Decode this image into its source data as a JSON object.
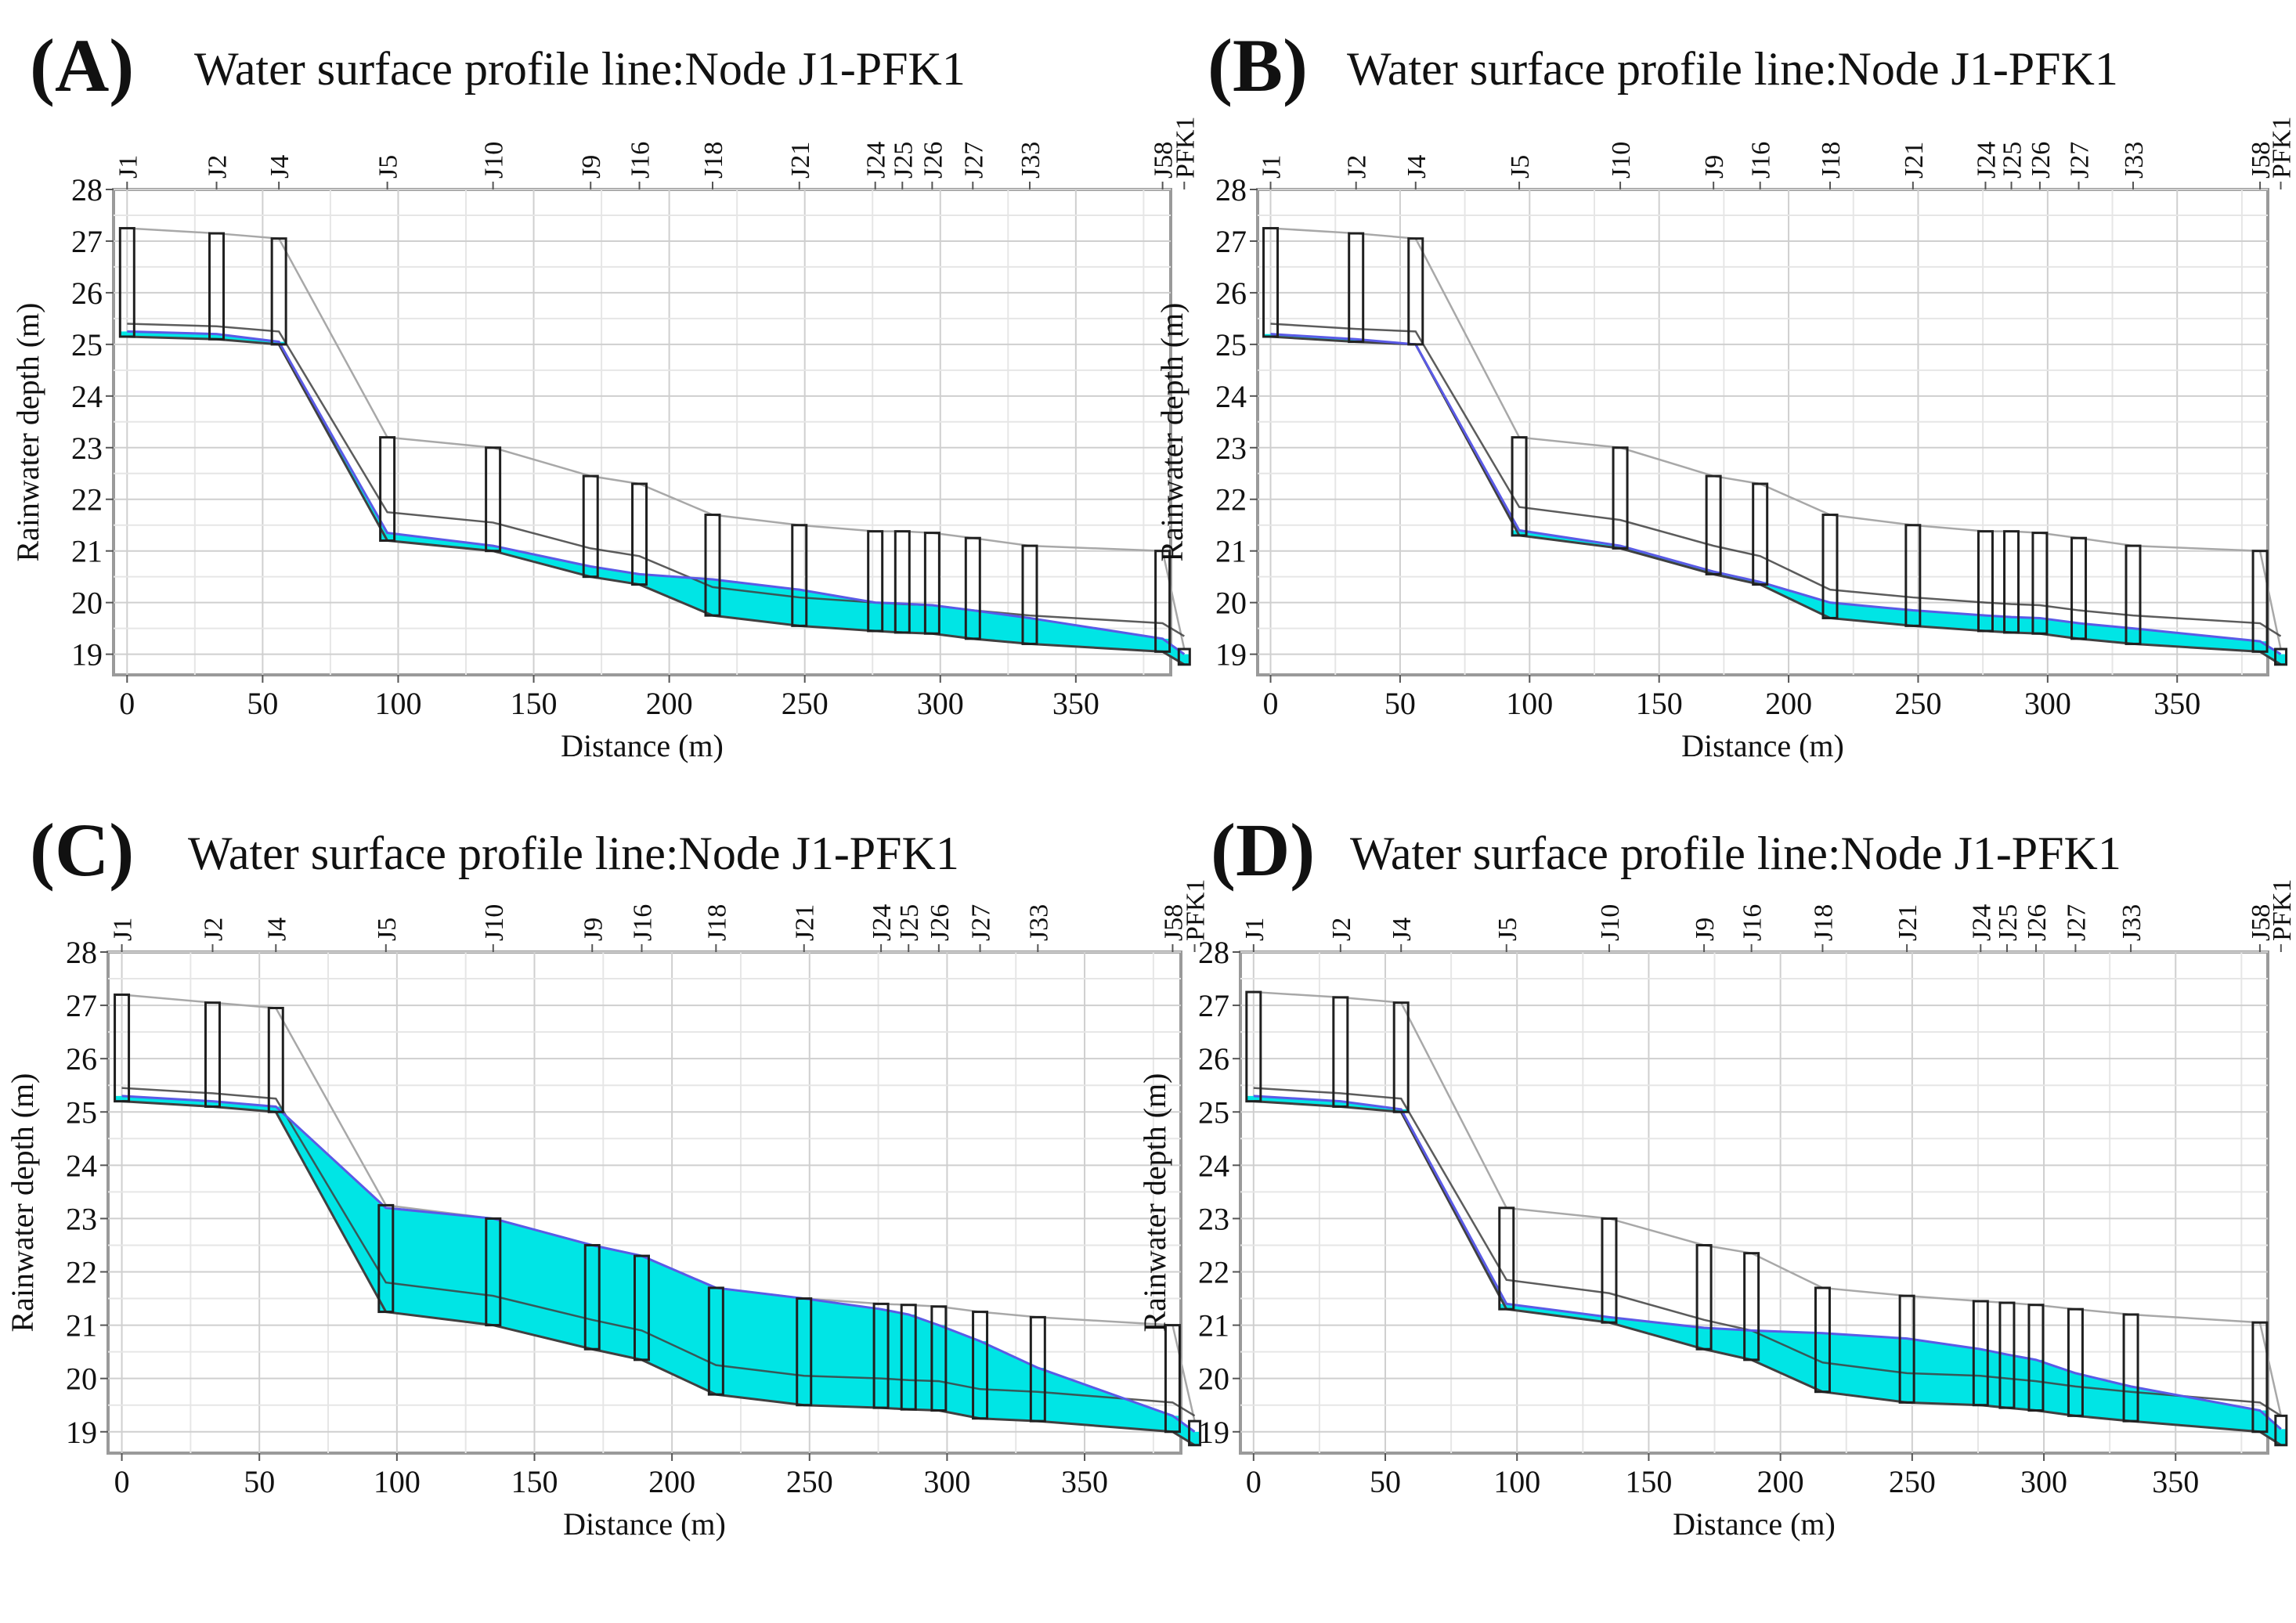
{
  "figure": {
    "panels": [
      {
        "letter": "(A)",
        "title": "Water surface profile line:Node J1-PFK1"
      },
      {
        "letter": "(B)",
        "title": "Water surface profile line:Node J1-PFK1"
      },
      {
        "letter": "(C)",
        "title": "Water surface profile line:Node J1-PFK1"
      },
      {
        "letter": "(D)",
        "title": "Water surface profile line:Node J1-PFK1"
      }
    ]
  },
  "chart_data": [
    {
      "type": "area",
      "title": "Water surface profile line:Node J1-PFK1",
      "xlabel": "Distance (m)",
      "ylabel": "Rainwater depth (m)",
      "xlim": [
        -5,
        385
      ],
      "ylim": [
        18.6,
        28
      ],
      "xticks": [
        0,
        50,
        100,
        150,
        200,
        250,
        300,
        350
      ],
      "yticks": [
        19,
        20,
        21,
        22,
        23,
        24,
        25,
        26,
        27,
        28
      ],
      "grid": true,
      "colors": {
        "water": "#00e5e5",
        "hgl": "#5a5ae6",
        "ground": "#a8a8a8",
        "pipe": "#404040",
        "node": "#202020"
      },
      "nodes": [
        "J1",
        "J2",
        "J4",
        "J5",
        "J10",
        "J9",
        "J16",
        "J18",
        "J21",
        "J24",
        "J25",
        "J26",
        "J27",
        "J33",
        "J58",
        "PFK1"
      ],
      "x": [
        0,
        33,
        56,
        96,
        135,
        171,
        189,
        216,
        248,
        276,
        286,
        297,
        312,
        333,
        382,
        390
      ],
      "ground": [
        27.25,
        27.15,
        27.05,
        23.2,
        23.0,
        22.45,
        22.3,
        21.7,
        21.5,
        21.38,
        21.38,
        21.35,
        21.25,
        21.1,
        21.0,
        19.1
      ],
      "invert": [
        25.15,
        25.1,
        25.0,
        21.2,
        21.0,
        20.5,
        20.35,
        19.75,
        19.55,
        19.45,
        19.42,
        19.4,
        19.3,
        19.2,
        19.05,
        18.8
      ],
      "water": [
        25.25,
        25.2,
        25.05,
        21.35,
        21.1,
        20.7,
        20.55,
        20.45,
        20.25,
        20.0,
        19.98,
        19.95,
        19.85,
        19.7,
        19.3,
        19.0
      ]
    },
    {
      "type": "area",
      "title": "Water surface profile line:Node J1-PFK1",
      "xlabel": "Distance (m)",
      "ylabel": "Rainwater depth (m)",
      "xlim": [
        -5,
        385
      ],
      "ylim": [
        18.6,
        28
      ],
      "xticks": [
        0,
        50,
        100,
        150,
        200,
        250,
        300,
        350
      ],
      "yticks": [
        19,
        20,
        21,
        22,
        23,
        24,
        25,
        26,
        27,
        28
      ],
      "grid": true,
      "colors": {
        "water": "#00e5e5",
        "hgl": "#5a5ae6",
        "ground": "#a8a8a8",
        "pipe": "#404040",
        "node": "#202020"
      },
      "nodes": [
        "J1",
        "J2",
        "J4",
        "J5",
        "J10",
        "J9",
        "J16",
        "J18",
        "J21",
        "J24",
        "J25",
        "J26",
        "J27",
        "J33",
        "J58",
        "PFK1"
      ],
      "x": [
        0,
        33,
        56,
        96,
        135,
        171,
        189,
        216,
        248,
        276,
        286,
        297,
        312,
        333,
        382,
        390
      ],
      "ground": [
        27.25,
        27.15,
        27.05,
        23.2,
        23.0,
        22.45,
        22.3,
        21.7,
        21.5,
        21.38,
        21.38,
        21.35,
        21.25,
        21.1,
        21.0,
        19.1
      ],
      "invert": [
        25.15,
        25.05,
        25.0,
        21.3,
        21.05,
        20.55,
        20.35,
        19.7,
        19.55,
        19.45,
        19.42,
        19.4,
        19.3,
        19.2,
        19.05,
        18.8
      ],
      "water": [
        25.2,
        25.1,
        25.0,
        21.4,
        21.1,
        20.6,
        20.4,
        20.0,
        19.85,
        19.75,
        19.72,
        19.7,
        19.6,
        19.5,
        19.25,
        19.0
      ]
    },
    {
      "type": "area",
      "title": "Water surface profile line:Node J1-PFK1",
      "xlabel": "Distance (m)",
      "ylabel": "Rainwater depth (m)",
      "xlim": [
        -5,
        385
      ],
      "ylim": [
        18.6,
        28
      ],
      "xticks": [
        0,
        50,
        100,
        150,
        200,
        250,
        300,
        350
      ],
      "yticks": [
        19,
        20,
        21,
        22,
        23,
        24,
        25,
        26,
        27,
        28
      ],
      "grid": true,
      "colors": {
        "water": "#00e5e5",
        "hgl": "#5a5ae6",
        "ground": "#a8a8a8",
        "pipe": "#404040",
        "node": "#202020"
      },
      "nodes": [
        "J1",
        "J2",
        "J4",
        "J5",
        "J10",
        "J9",
        "J16",
        "J18",
        "J21",
        "J24",
        "J25",
        "J26",
        "J27",
        "J33",
        "J58",
        "PFK1"
      ],
      "x": [
        0,
        33,
        56,
        96,
        135,
        171,
        189,
        216,
        248,
        276,
        286,
        297,
        312,
        333,
        382,
        390
      ],
      "ground": [
        27.2,
        27.05,
        26.95,
        23.25,
        23.0,
        22.5,
        22.3,
        21.7,
        21.5,
        21.4,
        21.38,
        21.35,
        21.25,
        21.15,
        21.0,
        19.2
      ],
      "invert": [
        25.2,
        25.1,
        25.0,
        21.25,
        21.0,
        20.55,
        20.35,
        19.7,
        19.5,
        19.45,
        19.42,
        19.4,
        19.25,
        19.2,
        19.0,
        18.75
      ],
      "water": [
        25.3,
        25.2,
        25.1,
        23.2,
        23.0,
        22.5,
        22.3,
        21.7,
        21.5,
        21.3,
        21.2,
        21.0,
        20.7,
        20.2,
        19.3,
        19.0
      ]
    },
    {
      "type": "area",
      "title": "Water surface profile line:Node J1-PFK1",
      "xlabel": "Distance (m)",
      "ylabel": "Rainwater depth (m)",
      "xlim": [
        -5,
        385
      ],
      "ylim": [
        18.6,
        28
      ],
      "xticks": [
        0,
        50,
        100,
        150,
        200,
        250,
        300,
        350
      ],
      "yticks": [
        19,
        20,
        21,
        22,
        23,
        24,
        25,
        26,
        27,
        28
      ],
      "grid": true,
      "colors": {
        "water": "#00e5e5",
        "hgl": "#5a5ae6",
        "ground": "#a8a8a8",
        "pipe": "#404040",
        "node": "#202020"
      },
      "nodes": [
        "J1",
        "J2",
        "J4",
        "J5",
        "J10",
        "J9",
        "J16",
        "J18",
        "J21",
        "J24",
        "J25",
        "J26",
        "J27",
        "J33",
        "J58",
        "PFK1"
      ],
      "x": [
        0,
        33,
        56,
        96,
        135,
        171,
        189,
        216,
        248,
        276,
        286,
        297,
        312,
        333,
        382,
        390
      ],
      "ground": [
        27.25,
        27.15,
        27.05,
        23.2,
        23.0,
        22.5,
        22.35,
        21.7,
        21.55,
        21.45,
        21.42,
        21.38,
        21.3,
        21.2,
        21.05,
        19.3
      ],
      "invert": [
        25.2,
        25.1,
        25.0,
        21.3,
        21.05,
        20.55,
        20.35,
        19.75,
        19.55,
        19.5,
        19.45,
        19.4,
        19.3,
        19.2,
        19.0,
        18.75
      ],
      "water": [
        25.3,
        25.2,
        25.05,
        21.4,
        21.15,
        20.95,
        20.9,
        20.85,
        20.75,
        20.55,
        20.45,
        20.35,
        20.1,
        19.85,
        19.4,
        19.05
      ]
    }
  ]
}
